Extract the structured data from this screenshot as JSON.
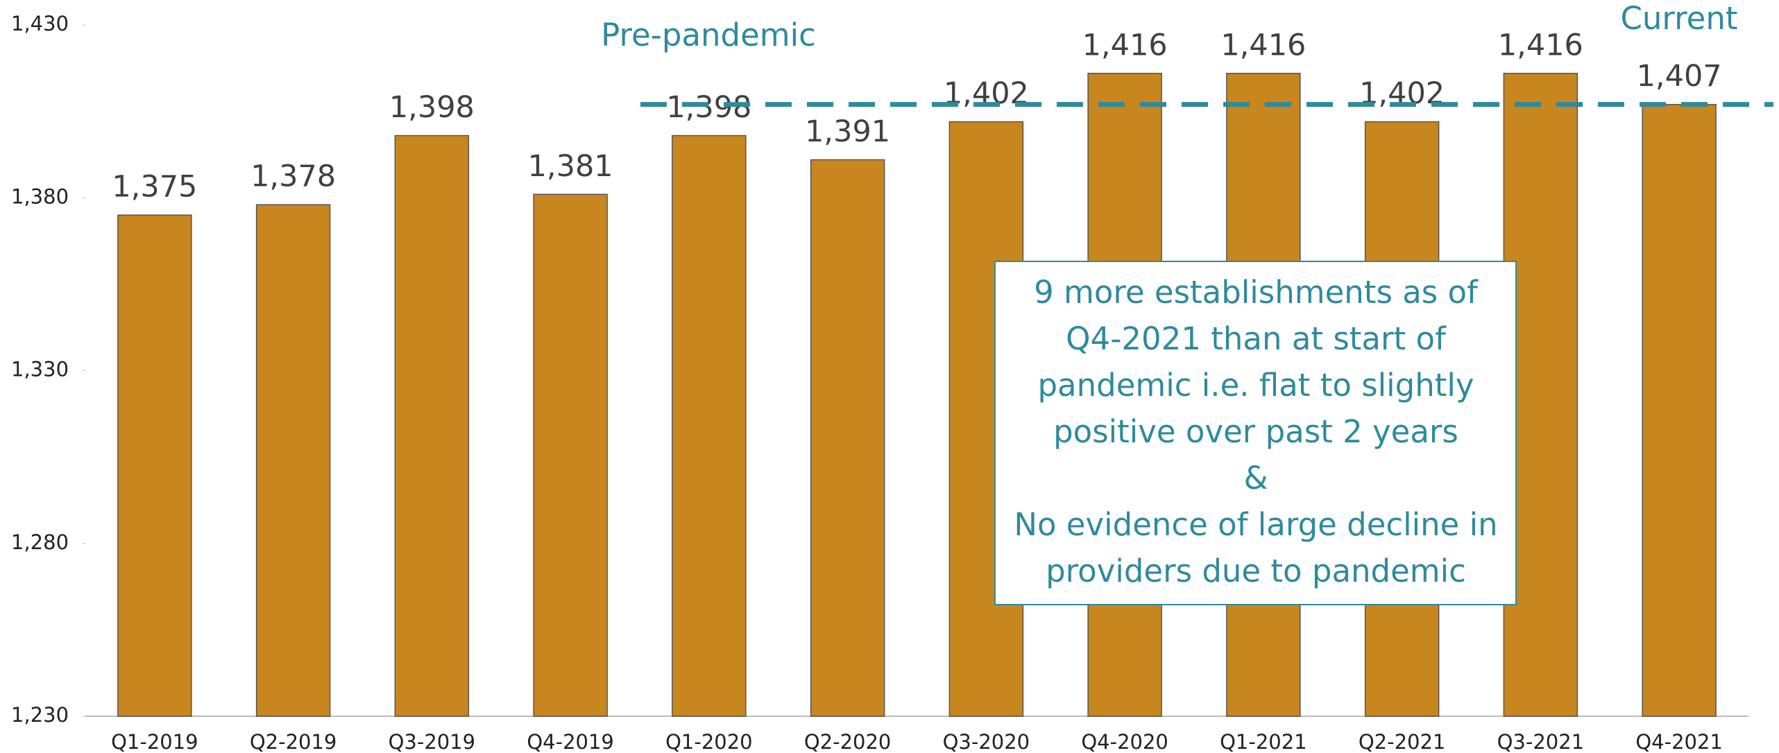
{
  "chart_data": {
    "type": "bar",
    "categories": [
      "Q1-2019",
      "Q2-2019",
      "Q3-2019",
      "Q4-2019",
      "Q1-2020",
      "Q2-2020",
      "Q3-2020",
      "Q4-2020",
      "Q1-2021",
      "Q2-2021",
      "Q3-2021",
      "Q4-2021"
    ],
    "values": [
      1375,
      1378,
      1398,
      1381,
      1398,
      1391,
      1402,
      1416,
      1416,
      1402,
      1416,
      1407
    ],
    "value_labels": [
      "1,375",
      "1,378",
      "1,398",
      "1,381",
      "1,398",
      "1,391",
      "1,402",
      "1,416",
      "1,416",
      "1,402",
      "1,416",
      "1,407"
    ],
    "color": "#c8861e",
    "ylim": [
      1230,
      1430
    ],
    "yticks": [
      {
        "value": 1230,
        "label": "1,230"
      },
      {
        "value": 1280,
        "label": "1,280"
      },
      {
        "value": 1330,
        "label": "1,330"
      },
      {
        "value": 1380,
        "label": "1,380"
      },
      {
        "value": 1430,
        "label": "1,430"
      }
    ],
    "reference_line": {
      "value": 1407,
      "color": "#2f8a9c"
    },
    "annotations": {
      "pre_pandemic": "Pre-pandemic",
      "current": "Current",
      "box": [
        "9 more establishments as of",
        "Q4-2021 than at start of",
        "pandemic i.e. flat to slightly",
        "positive over past 2 years",
        "&",
        "No evidence of large decline in",
        "providers due to pandemic"
      ]
    }
  }
}
